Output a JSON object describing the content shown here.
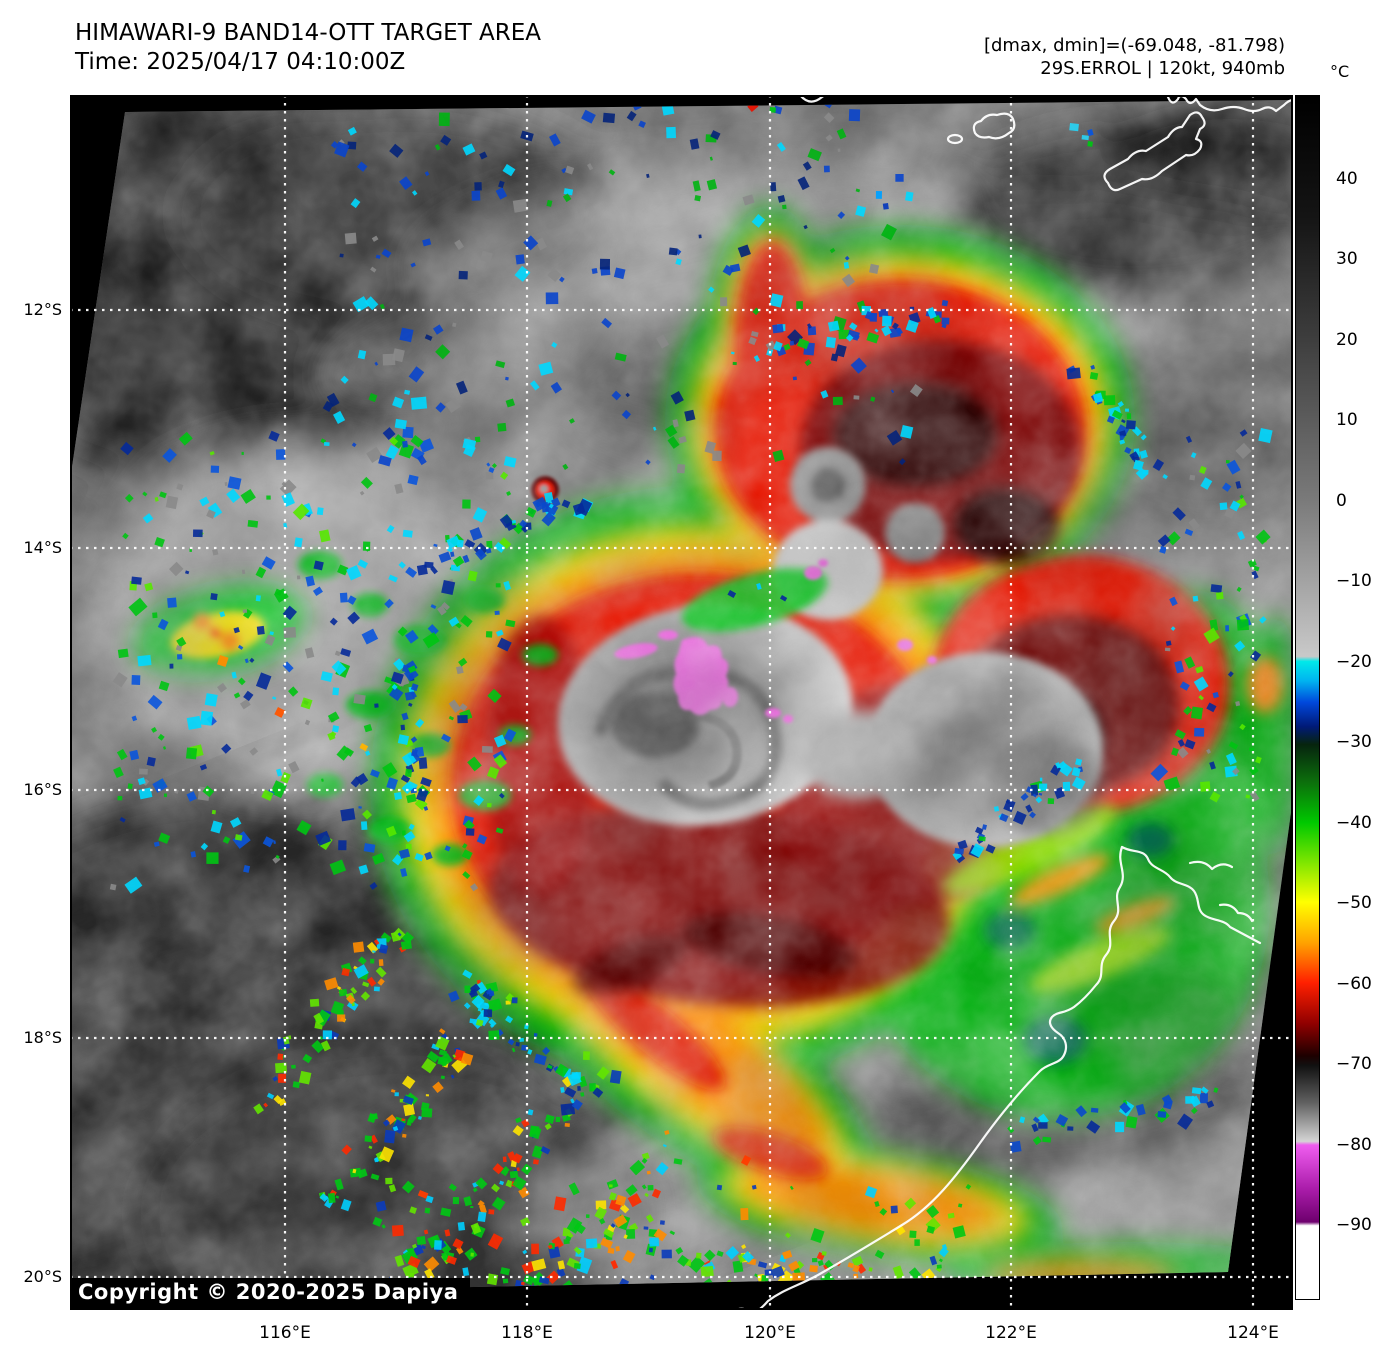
{
  "header": {
    "title": "HIMAWARI-9 BAND14-OTT TARGET AREA",
    "time": "Time: 2025/04/17 04:10:00Z"
  },
  "info": {
    "range": "[dmax, dmin]=(-69.048, -81.798)",
    "storm": "29S.ERROL | 120kt, 940mb"
  },
  "colorbar": {
    "unit": "°C",
    "tick_values": [
      40,
      30,
      20,
      10,
      0,
      -10,
      -20,
      -30,
      -40,
      -50,
      -60,
      -70,
      -80,
      -90
    ],
    "tick_labels": [
      "40",
      "30",
      "20",
      "10",
      "0",
      "−10",
      "−20",
      "−30",
      "−40",
      "−50",
      "−60",
      "−70",
      "−80",
      "−90"
    ],
    "top_value": 50,
    "bottom_value": -100
  },
  "axes": {
    "lat": [
      "12°S",
      "14°S",
      "16°S",
      "18°S",
      "20°S"
    ],
    "lon": [
      "116°E",
      "118°E",
      "120°E",
      "122°E",
      "124°E"
    ]
  },
  "map": {
    "copyright": "Copyright © 2020-2025 Dapiya",
    "satellite": "HIMAWARI-9",
    "band": "BAND14-OTT",
    "storm_id": "29S.ERROL",
    "intensity": "120kt",
    "pressure": "940mb",
    "dmax": "-69.048",
    "dmin": "-81.798"
  },
  "colors": {
    "coastline": "#ffffff",
    "grid": "#ffffff",
    "background": "#000000",
    "cold_red": "#e81200",
    "very_cold_magenta": "#e868dc",
    "convection_green": "#00c814",
    "anvil_yellow": "#ffe000",
    "warm_gray": "#9a9a9a"
  }
}
